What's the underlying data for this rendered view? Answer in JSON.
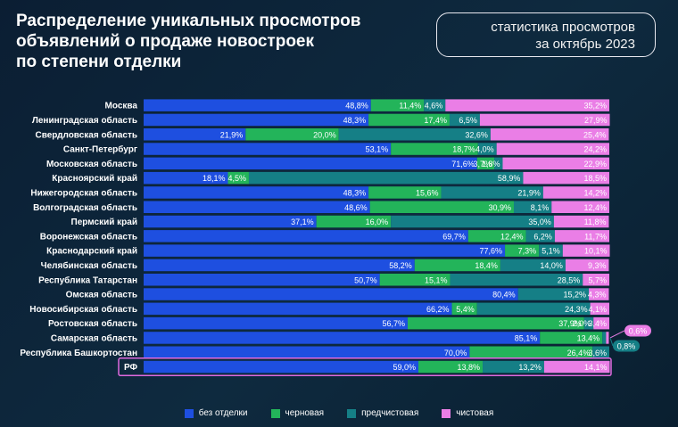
{
  "title_lines": [
    "Распределение уникальных просмотров",
    "объявлений о продаже новостроек",
    "по степени отделки"
  ],
  "badge_lines": [
    "статистика просмотров",
    "за октябрь 2023"
  ],
  "chart_data": {
    "type": "bar",
    "orientation": "horizontal",
    "stacked": "percent",
    "categories": [
      "Москва",
      "Ленинградская область",
      "Свердловская область",
      "Санкт-Петербург",
      "Московская область",
      "Красноярский край",
      "Нижегородская область",
      "Волгоградская область",
      "Пермский край",
      "Воронежская область",
      "Краснодарский край",
      "Челябинская область",
      "Республика Татарстан",
      "Омская область",
      "Новосибирская область",
      "Ростовская область",
      "Самарская область",
      "Республика Башкортостан",
      "РФ"
    ],
    "highlight_category": "РФ",
    "series": [
      {
        "name": "без отделки",
        "color": "#1e4fe0",
        "values": [
          48.8,
          48.3,
          21.9,
          53.1,
          71.6,
          18.1,
          48.3,
          48.6,
          37.1,
          69.7,
          77.6,
          58.2,
          50.7,
          80.4,
          66.2,
          56.7,
          85.1,
          70.0,
          59.0
        ],
        "labels": [
          "48,8%",
          "48,3%",
          "21,9%",
          "53,1%",
          "71,6%",
          "18,1%",
          "48,3%",
          "48,6%",
          "37,1%",
          "69,7%",
          "77,6%",
          "58,2%",
          "50,7%",
          "80,4%",
          "66,2%",
          "56,7%",
          "85,1%",
          "70,0%",
          "59,0%"
        ]
      },
      {
        "name": "черновая",
        "color": "#23b45a",
        "values": [
          11.4,
          17.4,
          20.0,
          18.7,
          3.7,
          4.5,
          15.6,
          30.9,
          16.0,
          12.4,
          7.3,
          18.4,
          15.1,
          0,
          5.4,
          37.9,
          13.4,
          26.4,
          13.8
        ],
        "labels": [
          "11,4%",
          "17,4%",
          "20,0%",
          "18,7%",
          "3,7%",
          "4,5%",
          "15,6%",
          "30,9%",
          "16,0%",
          "12,4%",
          "7,3%",
          "18,4%",
          "15,1%",
          "",
          "5,4%",
          "37,9%",
          "13,4%",
          "26,4%",
          "13,8%"
        ]
      },
      {
        "name": "предчистовая",
        "color": "#157f86",
        "values": [
          4.6,
          6.5,
          32.6,
          4.0,
          1.8,
          58.9,
          21.9,
          8.1,
          35.0,
          6.2,
          5.1,
          14.0,
          28.5,
          15.2,
          24.3,
          2.0,
          0.8,
          3.6,
          13.2
        ],
        "labels": [
          "4,6%",
          "6,5%",
          "32,6%",
          "4,0%",
          "1,8%",
          "58,9%",
          "21,9%",
          "8,1%",
          "35,0%",
          "6,2%",
          "5,1%",
          "14,0%",
          "28,5%",
          "15,2%",
          "24,3%",
          "2,0%",
          "0,8%",
          "3,6%",
          "13,2%"
        ]
      },
      {
        "name": "чистовая",
        "color": "#ea7ee6",
        "values": [
          35.2,
          27.9,
          25.4,
          24.2,
          22.9,
          18.5,
          14.2,
          12.4,
          11.8,
          11.7,
          10.1,
          9.3,
          5.7,
          4.3,
          4.1,
          3.4,
          0.6,
          0.0,
          14.1
        ],
        "labels": [
          "35,2%",
          "27,9%",
          "25,4%",
          "24,2%",
          "22,9%",
          "18,5%",
          "14,2%",
          "12,4%",
          "11,8%",
          "11,7%",
          "10,1%",
          "9,3%",
          "5,7%",
          "4,3%",
          "4,1%",
          "3,4%",
          "0,6%",
          "",
          "14,1%"
        ]
      }
    ],
    "callouts": [
      {
        "category": "Самарская область",
        "series": "чистовая",
        "label": "0,6%"
      },
      {
        "category": "Самарская область",
        "series": "предчистовая",
        "label": "0,8%"
      }
    ],
    "xlim": [
      0,
      100
    ],
    "legend_position": "bottom",
    "grid": false
  }
}
